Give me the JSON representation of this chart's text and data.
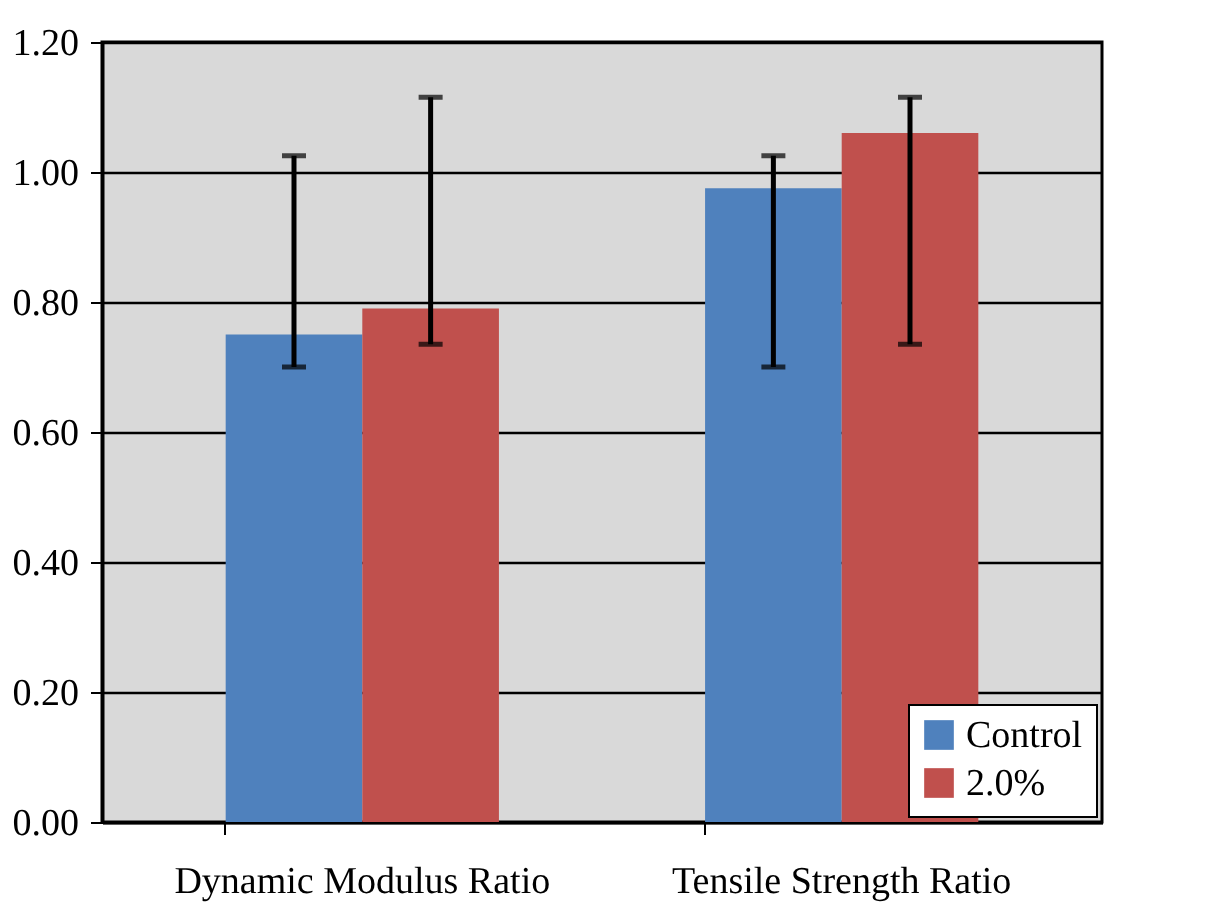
{
  "chart_data": {
    "type": "bar",
    "categories": [
      "Dynamic Modulus Ratio",
      "Tensile Strength Ratio"
    ],
    "series": [
      {
        "name": "Control",
        "color": "#4f81bd",
        "values": [
          0.75,
          0.975
        ],
        "errors": [
          [
            0.7,
            1.025
          ],
          [
            0.7,
            1.025
          ]
        ]
      },
      {
        "name": "2.0%",
        "color": "#c0504d",
        "values": [
          0.79,
          1.06
        ],
        "errors": [
          [
            0.735,
            1.115
          ],
          [
            0.735,
            1.115
          ]
        ]
      }
    ],
    "ylim": [
      0,
      1.2
    ],
    "yticks": [
      {
        "value": 0,
        "label": "0.00"
      },
      {
        "value": 0.2,
        "label": "0.20"
      },
      {
        "value": 0.4,
        "label": "0.40"
      },
      {
        "value": 0.6,
        "label": "0.60"
      },
      {
        "value": 0.8,
        "label": "0.80"
      },
      {
        "value": 1.0,
        "label": "1.00"
      },
      {
        "value": 1.2,
        "label": "1.20"
      }
    ],
    "grid": "y",
    "legend": "bottom right"
  }
}
